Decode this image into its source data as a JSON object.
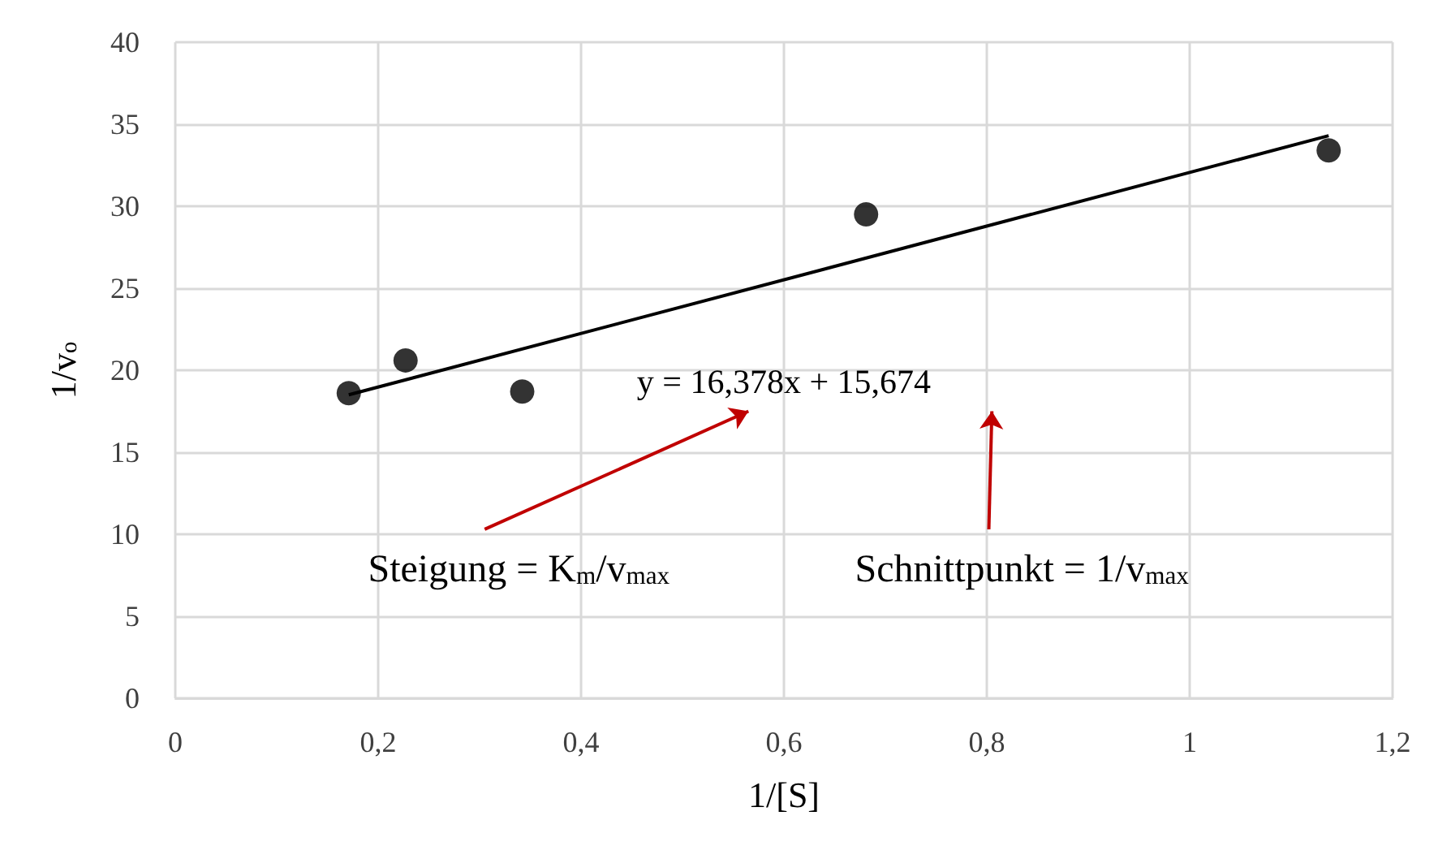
{
  "chart_data": {
    "type": "scatter",
    "xlabel": "1/[S]",
    "ylabel": "1/v$_{o}$",
    "x": [
      0.171,
      0.227,
      0.342,
      0.681,
      1.137
    ],
    "series": [
      {
        "color": "#000000",
        "marker": "circle",
        "values": [
          18.6,
          20.6,
          18.7,
          29.5,
          33.4
        ]
      },
      {
        "type": "line",
        "color": "#000000",
        "marker": "none",
        "x": [
          0.171,
          1.137
        ],
        "values": [
          18.5,
          34.3
        ]
      }
    ],
    "annotations": [
      "y = 16,378x + 15,674",
      "Steigung = K$_{m}$/v$_{max}$",
      "Schnittpunkt = 1/v$_{max}$"
    ],
    "xlim": [
      0,
      1.2
    ],
    "xticks": [
      {
        "value": 0,
        "label": "0"
      },
      {
        "value": 0.2,
        "label": "0,2"
      },
      {
        "value": 0.4,
        "label": "0,4"
      },
      {
        "value": 0.6,
        "label": "0,6"
      },
      {
        "value": 0.8,
        "label": "0,8"
      },
      {
        "value": 1,
        "label": "1"
      },
      {
        "value": 1.2,
        "label": "1,2"
      }
    ],
    "ylim": [
      0,
      40
    ],
    "yticks": [
      0,
      5,
      10,
      15,
      20,
      25,
      30,
      35,
      40
    ],
    "grid": true
  }
}
